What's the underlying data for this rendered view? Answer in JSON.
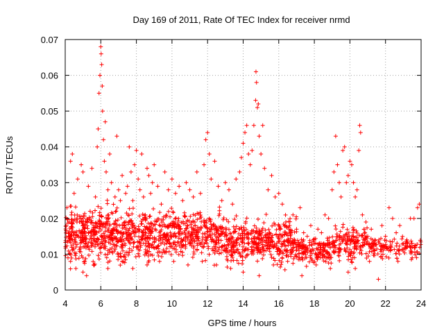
{
  "chart_data": {
    "type": "scatter",
    "title": "Day 169 of 2011, Rate Of TEC Index for receiver nrmd",
    "xlabel": "GPS time / hours",
    "ylabel": "ROTI / TECUs",
    "xlim": [
      4,
      24
    ],
    "ylim": [
      0,
      0.07
    ],
    "xticks": [
      4,
      6,
      8,
      10,
      12,
      14,
      16,
      18,
      20,
      22,
      24
    ],
    "xtick_labels": [
      "4",
      "6",
      "8",
      "10",
      "12",
      "14",
      "16",
      "18",
      "20",
      "22",
      "24"
    ],
    "yticks": [
      0,
      0.01,
      0.02,
      0.03,
      0.04,
      0.05,
      0.06,
      0.07
    ],
    "ytick_labels": [
      "0",
      "0.01",
      "0.02",
      "0.03",
      "0.04",
      "0.05",
      "0.06",
      "0.07"
    ],
    "grid": true,
    "marker": "+",
    "color": "#ff0000",
    "series": [
      {
        "name": "ROTI",
        "points": [
          [
            4.1,
            0.023
          ],
          [
            4.2,
            0.015
          ],
          [
            4.3,
            0.036
          ],
          [
            4.35,
            0.021
          ],
          [
            4.4,
            0.038
          ],
          [
            4.5,
            0.027
          ],
          [
            4.6,
            0.012
          ],
          [
            4.7,
            0.031
          ],
          [
            4.8,
            0.019
          ],
          [
            4.9,
            0.035
          ],
          [
            5.0,
            0.033
          ],
          [
            5.1,
            0.008
          ],
          [
            5.2,
            0.004
          ],
          [
            5.3,
            0.029
          ],
          [
            5.4,
            0.022
          ],
          [
            5.5,
            0.034
          ],
          [
            5.6,
            0.018
          ],
          [
            5.7,
            0.026
          ],
          [
            5.8,
            0.04
          ],
          [
            5.85,
            0.045
          ],
          [
            5.9,
            0.055
          ],
          [
            5.95,
            0.06
          ],
          [
            6.0,
            0.068
          ],
          [
            6.02,
            0.066
          ],
          [
            6.05,
            0.063
          ],
          [
            6.08,
            0.057
          ],
          [
            6.1,
            0.05
          ],
          [
            6.15,
            0.042
          ],
          [
            6.2,
            0.036
          ],
          [
            6.25,
            0.047
          ],
          [
            6.3,
            0.033
          ],
          [
            6.4,
            0.028
          ],
          [
            6.5,
            0.038
          ],
          [
            6.6,
            0.03
          ],
          [
            6.7,
            0.017
          ],
          [
            6.8,
            0.026
          ],
          [
            6.9,
            0.043
          ],
          [
            7.0,
            0.028
          ],
          [
            7.1,
            0.025
          ],
          [
            7.2,
            0.032
          ],
          [
            7.3,
            0.018
          ],
          [
            7.4,
            0.027
          ],
          [
            7.5,
            0.029
          ],
          [
            7.6,
            0.04
          ],
          [
            7.7,
            0.033
          ],
          [
            7.8,
            0.025
          ],
          [
            7.9,
            0.035
          ],
          [
            8.0,
            0.039
          ],
          [
            8.1,
            0.031
          ],
          [
            8.2,
            0.028
          ],
          [
            8.3,
            0.038
          ],
          [
            8.4,
            0.026
          ],
          [
            8.5,
            0.021
          ],
          [
            8.6,
            0.034
          ],
          [
            8.7,
            0.032
          ],
          [
            8.8,
            0.027
          ],
          [
            8.9,
            0.03
          ],
          [
            9.0,
            0.035
          ],
          [
            9.2,
            0.029
          ],
          [
            9.4,
            0.024
          ],
          [
            9.6,
            0.033
          ],
          [
            9.8,
            0.028
          ],
          [
            10.0,
            0.031
          ],
          [
            10.2,
            0.027
          ],
          [
            10.4,
            0.029
          ],
          [
            10.6,
            0.025
          ],
          [
            10.8,
            0.03
          ],
          [
            11.0,
            0.028
          ],
          [
            11.2,
            0.026
          ],
          [
            11.4,
            0.033
          ],
          [
            11.6,
            0.027
          ],
          [
            11.8,
            0.035
          ],
          [
            11.9,
            0.042
          ],
          [
            12.0,
            0.044
          ],
          [
            12.1,
            0.038
          ],
          [
            12.2,
            0.031
          ],
          [
            12.4,
            0.036
          ],
          [
            12.6,
            0.029
          ],
          [
            12.8,
            0.025
          ],
          [
            13.0,
            0.03
          ],
          [
            13.2,
            0.028
          ],
          [
            13.4,
            0.024
          ],
          [
            13.6,
            0.031
          ],
          [
            13.8,
            0.033
          ],
          [
            13.9,
            0.037
          ],
          [
            14.0,
            0.041
          ],
          [
            14.1,
            0.044
          ],
          [
            14.2,
            0.046
          ],
          [
            14.3,
            0.038
          ],
          [
            14.4,
            0.035
          ],
          [
            14.5,
            0.039
          ],
          [
            14.6,
            0.046
          ],
          [
            14.7,
            0.053
          ],
          [
            14.72,
            0.061
          ],
          [
            14.75,
            0.058
          ],
          [
            14.8,
            0.051
          ],
          [
            14.85,
            0.052
          ],
          [
            14.9,
            0.043
          ],
          [
            15.0,
            0.038
          ],
          [
            15.1,
            0.046
          ],
          [
            15.2,
            0.034
          ],
          [
            15.4,
            0.028
          ],
          [
            15.6,
            0.032
          ],
          [
            15.8,
            0.026
          ],
          [
            16.0,
            0.027
          ],
          [
            16.2,
            0.024
          ],
          [
            16.4,
            0.019
          ],
          [
            16.6,
            0.016
          ],
          [
            16.8,
            0.021
          ],
          [
            17.0,
            0.017
          ],
          [
            17.2,
            0.023
          ],
          [
            17.4,
            0.016
          ],
          [
            17.6,
            0.015
          ],
          [
            17.8,
            0.018
          ],
          [
            18.0,
            0.014
          ],
          [
            18.2,
            0.017
          ],
          [
            18.4,
            0.016
          ],
          [
            18.6,
            0.021
          ],
          [
            18.8,
            0.02
          ],
          [
            19.0,
            0.028
          ],
          [
            19.1,
            0.033
          ],
          [
            19.2,
            0.043
          ],
          [
            19.3,
            0.035
          ],
          [
            19.4,
            0.03
          ],
          [
            19.5,
            0.026
          ],
          [
            19.6,
            0.039
          ],
          [
            19.7,
            0.04
          ],
          [
            19.8,
            0.03
          ],
          [
            19.9,
            0.032
          ],
          [
            20.0,
            0.036
          ],
          [
            20.1,
            0.035
          ],
          [
            20.2,
            0.03
          ],
          [
            20.3,
            0.026
          ],
          [
            20.4,
            0.028
          ],
          [
            20.5,
            0.039
          ],
          [
            20.55,
            0.046
          ],
          [
            20.6,
            0.044
          ],
          [
            20.7,
            0.021
          ],
          [
            20.8,
            0.017
          ],
          [
            20.9,
            0.019
          ],
          [
            21.0,
            0.015
          ],
          [
            21.2,
            0.017
          ],
          [
            21.4,
            0.014
          ],
          [
            21.6,
            0.003
          ],
          [
            21.8,
            0.018
          ],
          [
            22.0,
            0.015
          ],
          [
            22.2,
            0.023
          ],
          [
            22.4,
            0.02
          ],
          [
            22.6,
            0.016
          ],
          [
            22.8,
            0.018
          ],
          [
            23.0,
            0.013
          ],
          [
            23.2,
            0.014
          ],
          [
            23.4,
            0.02
          ],
          [
            23.6,
            0.02
          ],
          [
            23.8,
            0.023
          ],
          [
            23.9,
            0.024
          ],
          [
            4.3,
            0.008
          ],
          [
            4.6,
            0.006
          ],
          [
            5.0,
            0.005
          ],
          [
            5.6,
            0.007
          ],
          [
            6.4,
            0.006
          ],
          [
            7.2,
            0.008
          ],
          [
            7.8,
            0.006
          ],
          [
            8.6,
            0.007
          ],
          [
            9.3,
            0.008
          ],
          [
            10.1,
            0.008
          ],
          [
            10.9,
            0.007
          ],
          [
            11.7,
            0.008
          ],
          [
            12.5,
            0.007
          ],
          [
            13.3,
            0.006
          ],
          [
            14.0,
            0.005
          ],
          [
            14.9,
            0.004
          ],
          [
            15.7,
            0.007
          ],
          [
            16.5,
            0.008
          ],
          [
            17.3,
            0.004
          ],
          [
            18.1,
            0.007
          ],
          [
            18.9,
            0.006
          ],
          [
            19.9,
            0.005
          ],
          [
            20.3,
            0.006
          ],
          [
            21.1,
            0.008
          ],
          [
            22.7,
            0.008
          ],
          [
            23.5,
            0.009
          ]
        ]
      }
    ],
    "density": {
      "description": "dense cloud of small ROTI values",
      "bands": [
        {
          "x_range": [
            4,
            8
          ],
          "y_min": 0.005,
          "y_max": 0.026,
          "count": 500
        },
        {
          "x_range": [
            8,
            13
          ],
          "y_min": 0.006,
          "y_max": 0.025,
          "count": 520
        },
        {
          "x_range": [
            13,
            17
          ],
          "y_min": 0.005,
          "y_max": 0.022,
          "count": 420
        },
        {
          "x_range": [
            17,
            19
          ],
          "y_min": 0.006,
          "y_max": 0.016,
          "count": 160
        },
        {
          "x_range": [
            19,
            21
          ],
          "y_min": 0.007,
          "y_max": 0.02,
          "count": 160
        },
        {
          "x_range": [
            21,
            24
          ],
          "y_min": 0.008,
          "y_max": 0.016,
          "count": 140
        }
      ]
    }
  }
}
